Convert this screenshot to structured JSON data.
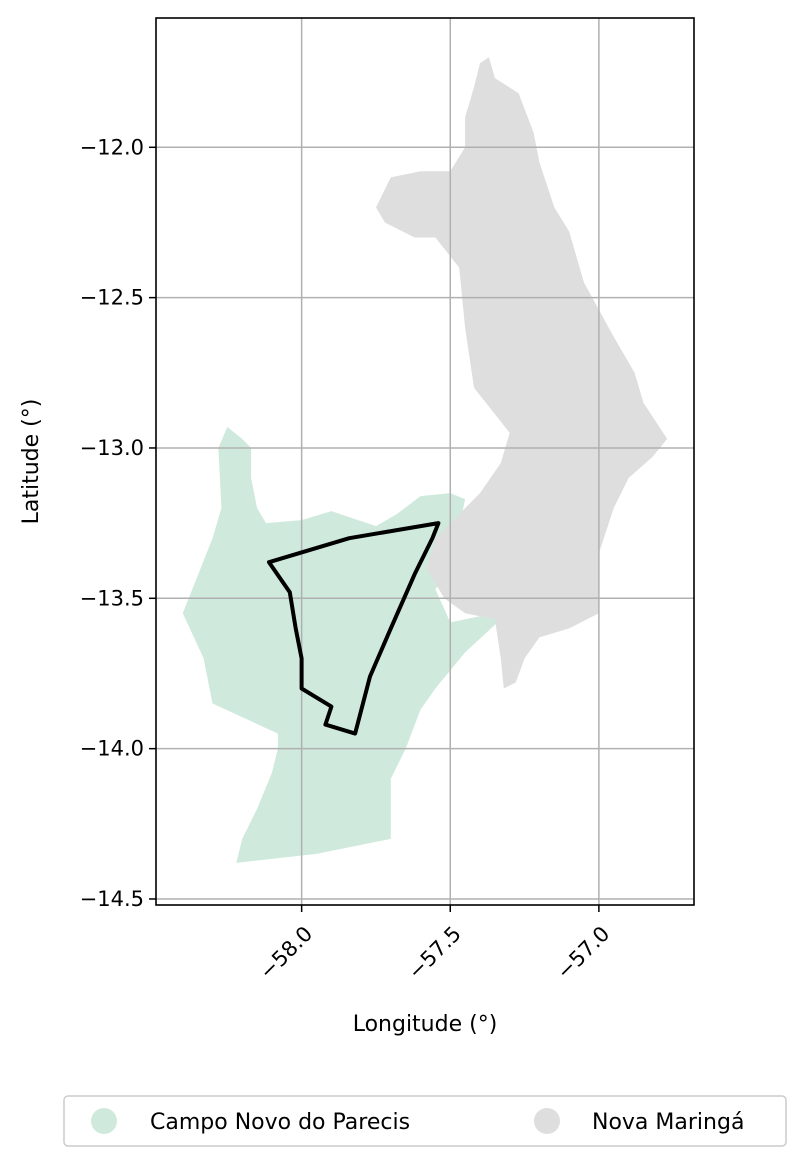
{
  "chart_data": {
    "type": "map",
    "xlabel": "Longitude (°)",
    "ylabel": "Latitude (°)",
    "xlim": [
      -58.49,
      -56.68
    ],
    "ylim": [
      -14.52,
      -11.57
    ],
    "xticks": [
      {
        "value": -58.0,
        "label": "−58.0"
      },
      {
        "value": -57.5,
        "label": "−57.5"
      },
      {
        "value": -57.0,
        "label": "−57.0"
      }
    ],
    "yticks": [
      {
        "value": -12.0,
        "label": "−12.0"
      },
      {
        "value": -12.5,
        "label": "−12.5"
      },
      {
        "value": -13.0,
        "label": "−13.0"
      },
      {
        "value": -13.5,
        "label": "−13.5"
      },
      {
        "value": -14.0,
        "label": "−14.0"
      },
      {
        "value": -14.5,
        "label": "−14.5"
      }
    ],
    "grid": true,
    "legend_position": "bottom",
    "series": [
      {
        "name": "Campo Novo do Parecis",
        "color": "#cfeadd",
        "polygon": [
          [
            -58.25,
            -12.93
          ],
          [
            -58.2,
            -12.97
          ],
          [
            -58.17,
            -13.0
          ],
          [
            -58.17,
            -13.1
          ],
          [
            -58.15,
            -13.2
          ],
          [
            -58.12,
            -13.25
          ],
          [
            -58.0,
            -13.24
          ],
          [
            -57.9,
            -13.21
          ],
          [
            -57.75,
            -13.26
          ],
          [
            -57.68,
            -13.22
          ],
          [
            -57.6,
            -13.16
          ],
          [
            -57.5,
            -13.15
          ],
          [
            -57.45,
            -13.17
          ],
          [
            -57.5,
            -13.4
          ],
          [
            -57.55,
            -13.47
          ],
          [
            -57.5,
            -13.58
          ],
          [
            -57.4,
            -13.56
          ],
          [
            -57.33,
            -13.57
          ],
          [
            -57.45,
            -13.68
          ],
          [
            -57.55,
            -13.8
          ],
          [
            -57.6,
            -13.87
          ],
          [
            -57.65,
            -14.0
          ],
          [
            -57.7,
            -14.1
          ],
          [
            -57.7,
            -14.3
          ],
          [
            -57.95,
            -14.35
          ],
          [
            -58.22,
            -14.38
          ],
          [
            -58.2,
            -14.3
          ],
          [
            -58.15,
            -14.2
          ],
          [
            -58.1,
            -14.08
          ],
          [
            -58.08,
            -14.0
          ],
          [
            -58.08,
            -13.95
          ],
          [
            -58.3,
            -13.85
          ],
          [
            -58.33,
            -13.7
          ],
          [
            -58.4,
            -13.55
          ],
          [
            -58.3,
            -13.3
          ],
          [
            -58.27,
            -13.2
          ],
          [
            -58.28,
            -13.0
          ]
        ]
      },
      {
        "name": "Nova Maringá",
        "color": "#dedede",
        "polygon": [
          [
            -57.4,
            -11.72
          ],
          [
            -57.37,
            -11.7
          ],
          [
            -57.35,
            -11.77
          ],
          [
            -57.27,
            -11.82
          ],
          [
            -57.22,
            -11.95
          ],
          [
            -57.2,
            -12.05
          ],
          [
            -57.15,
            -12.2
          ],
          [
            -57.1,
            -12.28
          ],
          [
            -57.05,
            -12.45
          ],
          [
            -56.95,
            -12.63
          ],
          [
            -56.88,
            -12.75
          ],
          [
            -56.85,
            -12.85
          ],
          [
            -56.77,
            -12.97
          ],
          [
            -56.82,
            -13.03
          ],
          [
            -56.9,
            -13.1
          ],
          [
            -56.95,
            -13.2
          ],
          [
            -57.0,
            -13.35
          ],
          [
            -57.0,
            -13.55
          ],
          [
            -57.1,
            -13.6
          ],
          [
            -57.2,
            -13.63
          ],
          [
            -57.25,
            -13.7
          ],
          [
            -57.28,
            -13.78
          ],
          [
            -57.32,
            -13.8
          ],
          [
            -57.33,
            -13.7
          ],
          [
            -57.35,
            -13.57
          ],
          [
            -57.45,
            -13.55
          ],
          [
            -57.52,
            -13.5
          ],
          [
            -57.55,
            -13.45
          ],
          [
            -57.58,
            -13.4
          ],
          [
            -57.55,
            -13.3
          ],
          [
            -57.45,
            -13.2
          ],
          [
            -57.4,
            -13.15
          ],
          [
            -57.33,
            -13.05
          ],
          [
            -57.3,
            -12.95
          ],
          [
            -57.42,
            -12.8
          ],
          [
            -57.45,
            -12.6
          ],
          [
            -57.47,
            -12.4
          ],
          [
            -57.55,
            -12.3
          ],
          [
            -57.62,
            -12.3
          ],
          [
            -57.72,
            -12.25
          ],
          [
            -57.75,
            -12.2
          ],
          [
            -57.7,
            -12.1
          ],
          [
            -57.6,
            -12.08
          ],
          [
            -57.5,
            -12.08
          ],
          [
            -57.45,
            -12.0
          ],
          [
            -57.45,
            -11.9
          ],
          [
            -57.42,
            -11.8
          ]
        ]
      }
    ],
    "outline": {
      "color": "#000000",
      "polygon": [
        [
          -57.54,
          -13.25
        ],
        [
          -57.84,
          -13.3
        ],
        [
          -58.11,
          -13.38
        ],
        [
          -58.04,
          -13.48
        ],
        [
          -58.02,
          -13.6
        ],
        [
          -58.0,
          -13.7
        ],
        [
          -58.0,
          -13.8
        ],
        [
          -57.9,
          -13.86
        ],
        [
          -57.92,
          -13.92
        ],
        [
          -57.82,
          -13.95
        ],
        [
          -57.77,
          -13.76
        ],
        [
          -57.7,
          -13.6
        ],
        [
          -57.62,
          -13.42
        ],
        [
          -57.56,
          -13.3
        ]
      ]
    }
  }
}
